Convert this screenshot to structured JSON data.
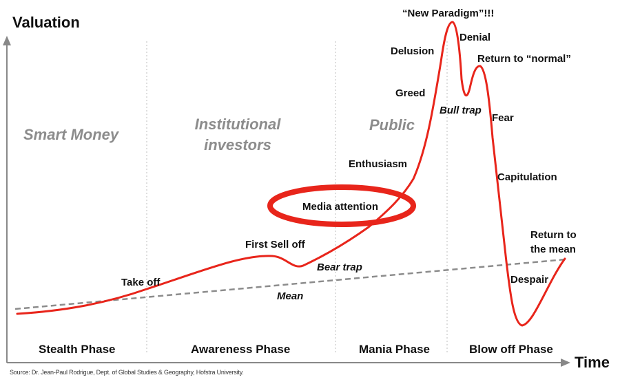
{
  "axes": {
    "y_label": "Valuation",
    "x_label": "Time"
  },
  "groups": [
    {
      "id": "smart-money",
      "text": "Smart Money"
    },
    {
      "id": "institutional",
      "line1": "Institutional",
      "line2": "investors"
    },
    {
      "id": "public",
      "text": "Public"
    }
  ],
  "phases": [
    "Stealth Phase",
    "Awareness Phase",
    "Mania Phase",
    "Blow off Phase"
  ],
  "labels": {
    "take_off": "Take off",
    "first_sell_off": "First Sell off",
    "bear_trap": "Bear trap",
    "mean": "Mean",
    "media_attention": "Media attention",
    "enthusiasm": "Enthusiasm",
    "greed": "Greed",
    "delusion": "Delusion",
    "new_paradigm": "“New Paradigm”!!!",
    "denial": "Denial",
    "return_normal": "Return to “normal”",
    "bull_trap": "Bull trap",
    "fear": "Fear",
    "capitulation": "Capitulation",
    "return_mean_1": "Return to",
    "return_mean_2": "the mean",
    "despair": "Despair"
  },
  "source": "Source: Dr. Jean-Paul Rodrigue, Dept. of Global Studies & Geography, Hofstra University.",
  "colors": {
    "curve": "#e8251b",
    "mean_line": "#8c8c8c",
    "axis": "#888888",
    "divider": "#c8c8c8",
    "group_text": "#8c8c8c"
  }
}
